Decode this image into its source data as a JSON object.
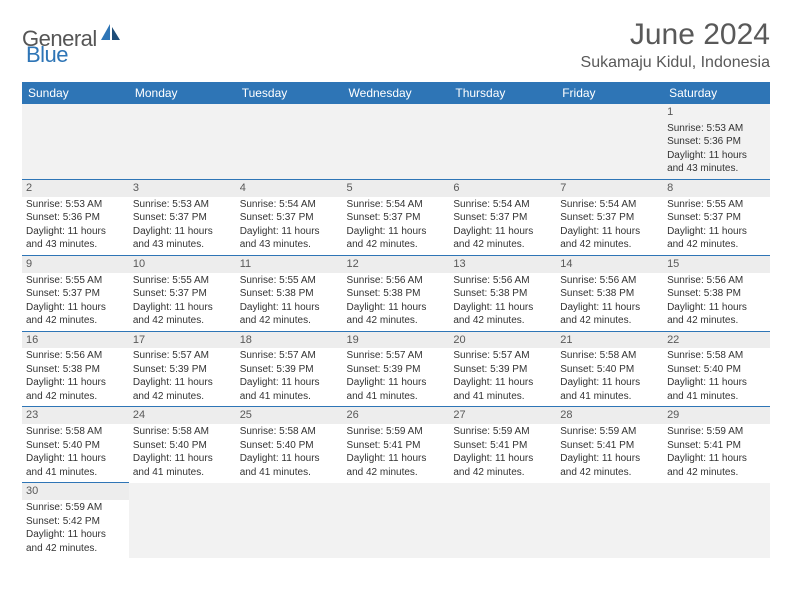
{
  "logo": {
    "part1": "General",
    "part2": "Blue"
  },
  "title": "June 2024",
  "location": "Sukamaju Kidul, Indonesia",
  "colors": {
    "header_bg": "#2e75b6",
    "header_text": "#ffffff",
    "title_text": "#595959",
    "row_divider": "#2e75b6",
    "daynum_bg": "#ededed",
    "body_text": "#333333"
  },
  "weekdays": [
    "Sunday",
    "Monday",
    "Tuesday",
    "Wednesday",
    "Thursday",
    "Friday",
    "Saturday"
  ],
  "weeks": [
    [
      null,
      null,
      null,
      null,
      null,
      null,
      {
        "n": "1",
        "sr": "5:53 AM",
        "ss": "5:36 PM",
        "dl": "11 hours and 43 minutes."
      }
    ],
    [
      {
        "n": "2",
        "sr": "5:53 AM",
        "ss": "5:36 PM",
        "dl": "11 hours and 43 minutes."
      },
      {
        "n": "3",
        "sr": "5:53 AM",
        "ss": "5:37 PM",
        "dl": "11 hours and 43 minutes."
      },
      {
        "n": "4",
        "sr": "5:54 AM",
        "ss": "5:37 PM",
        "dl": "11 hours and 43 minutes."
      },
      {
        "n": "5",
        "sr": "5:54 AM",
        "ss": "5:37 PM",
        "dl": "11 hours and 42 minutes."
      },
      {
        "n": "6",
        "sr": "5:54 AM",
        "ss": "5:37 PM",
        "dl": "11 hours and 42 minutes."
      },
      {
        "n": "7",
        "sr": "5:54 AM",
        "ss": "5:37 PM",
        "dl": "11 hours and 42 minutes."
      },
      {
        "n": "8",
        "sr": "5:55 AM",
        "ss": "5:37 PM",
        "dl": "11 hours and 42 minutes."
      }
    ],
    [
      {
        "n": "9",
        "sr": "5:55 AM",
        "ss": "5:37 PM",
        "dl": "11 hours and 42 minutes."
      },
      {
        "n": "10",
        "sr": "5:55 AM",
        "ss": "5:37 PM",
        "dl": "11 hours and 42 minutes."
      },
      {
        "n": "11",
        "sr": "5:55 AM",
        "ss": "5:38 PM",
        "dl": "11 hours and 42 minutes."
      },
      {
        "n": "12",
        "sr": "5:56 AM",
        "ss": "5:38 PM",
        "dl": "11 hours and 42 minutes."
      },
      {
        "n": "13",
        "sr": "5:56 AM",
        "ss": "5:38 PM",
        "dl": "11 hours and 42 minutes."
      },
      {
        "n": "14",
        "sr": "5:56 AM",
        "ss": "5:38 PM",
        "dl": "11 hours and 42 minutes."
      },
      {
        "n": "15",
        "sr": "5:56 AM",
        "ss": "5:38 PM",
        "dl": "11 hours and 42 minutes."
      }
    ],
    [
      {
        "n": "16",
        "sr": "5:56 AM",
        "ss": "5:38 PM",
        "dl": "11 hours and 42 minutes."
      },
      {
        "n": "17",
        "sr": "5:57 AM",
        "ss": "5:39 PM",
        "dl": "11 hours and 42 minutes."
      },
      {
        "n": "18",
        "sr": "5:57 AM",
        "ss": "5:39 PM",
        "dl": "11 hours and 41 minutes."
      },
      {
        "n": "19",
        "sr": "5:57 AM",
        "ss": "5:39 PM",
        "dl": "11 hours and 41 minutes."
      },
      {
        "n": "20",
        "sr": "5:57 AM",
        "ss": "5:39 PM",
        "dl": "11 hours and 41 minutes."
      },
      {
        "n": "21",
        "sr": "5:58 AM",
        "ss": "5:40 PM",
        "dl": "11 hours and 41 minutes."
      },
      {
        "n": "22",
        "sr": "5:58 AM",
        "ss": "5:40 PM",
        "dl": "11 hours and 41 minutes."
      }
    ],
    [
      {
        "n": "23",
        "sr": "5:58 AM",
        "ss": "5:40 PM",
        "dl": "11 hours and 41 minutes."
      },
      {
        "n": "24",
        "sr": "5:58 AM",
        "ss": "5:40 PM",
        "dl": "11 hours and 41 minutes."
      },
      {
        "n": "25",
        "sr": "5:58 AM",
        "ss": "5:40 PM",
        "dl": "11 hours and 41 minutes."
      },
      {
        "n": "26",
        "sr": "5:59 AM",
        "ss": "5:41 PM",
        "dl": "11 hours and 42 minutes."
      },
      {
        "n": "27",
        "sr": "5:59 AM",
        "ss": "5:41 PM",
        "dl": "11 hours and 42 minutes."
      },
      {
        "n": "28",
        "sr": "5:59 AM",
        "ss": "5:41 PM",
        "dl": "11 hours and 42 minutes."
      },
      {
        "n": "29",
        "sr": "5:59 AM",
        "ss": "5:41 PM",
        "dl": "11 hours and 42 minutes."
      }
    ],
    [
      {
        "n": "30",
        "sr": "5:59 AM",
        "ss": "5:42 PM",
        "dl": "11 hours and 42 minutes."
      },
      null,
      null,
      null,
      null,
      null,
      null
    ]
  ],
  "labels": {
    "sunrise": "Sunrise:",
    "sunset": "Sunset:",
    "daylight": "Daylight:"
  }
}
